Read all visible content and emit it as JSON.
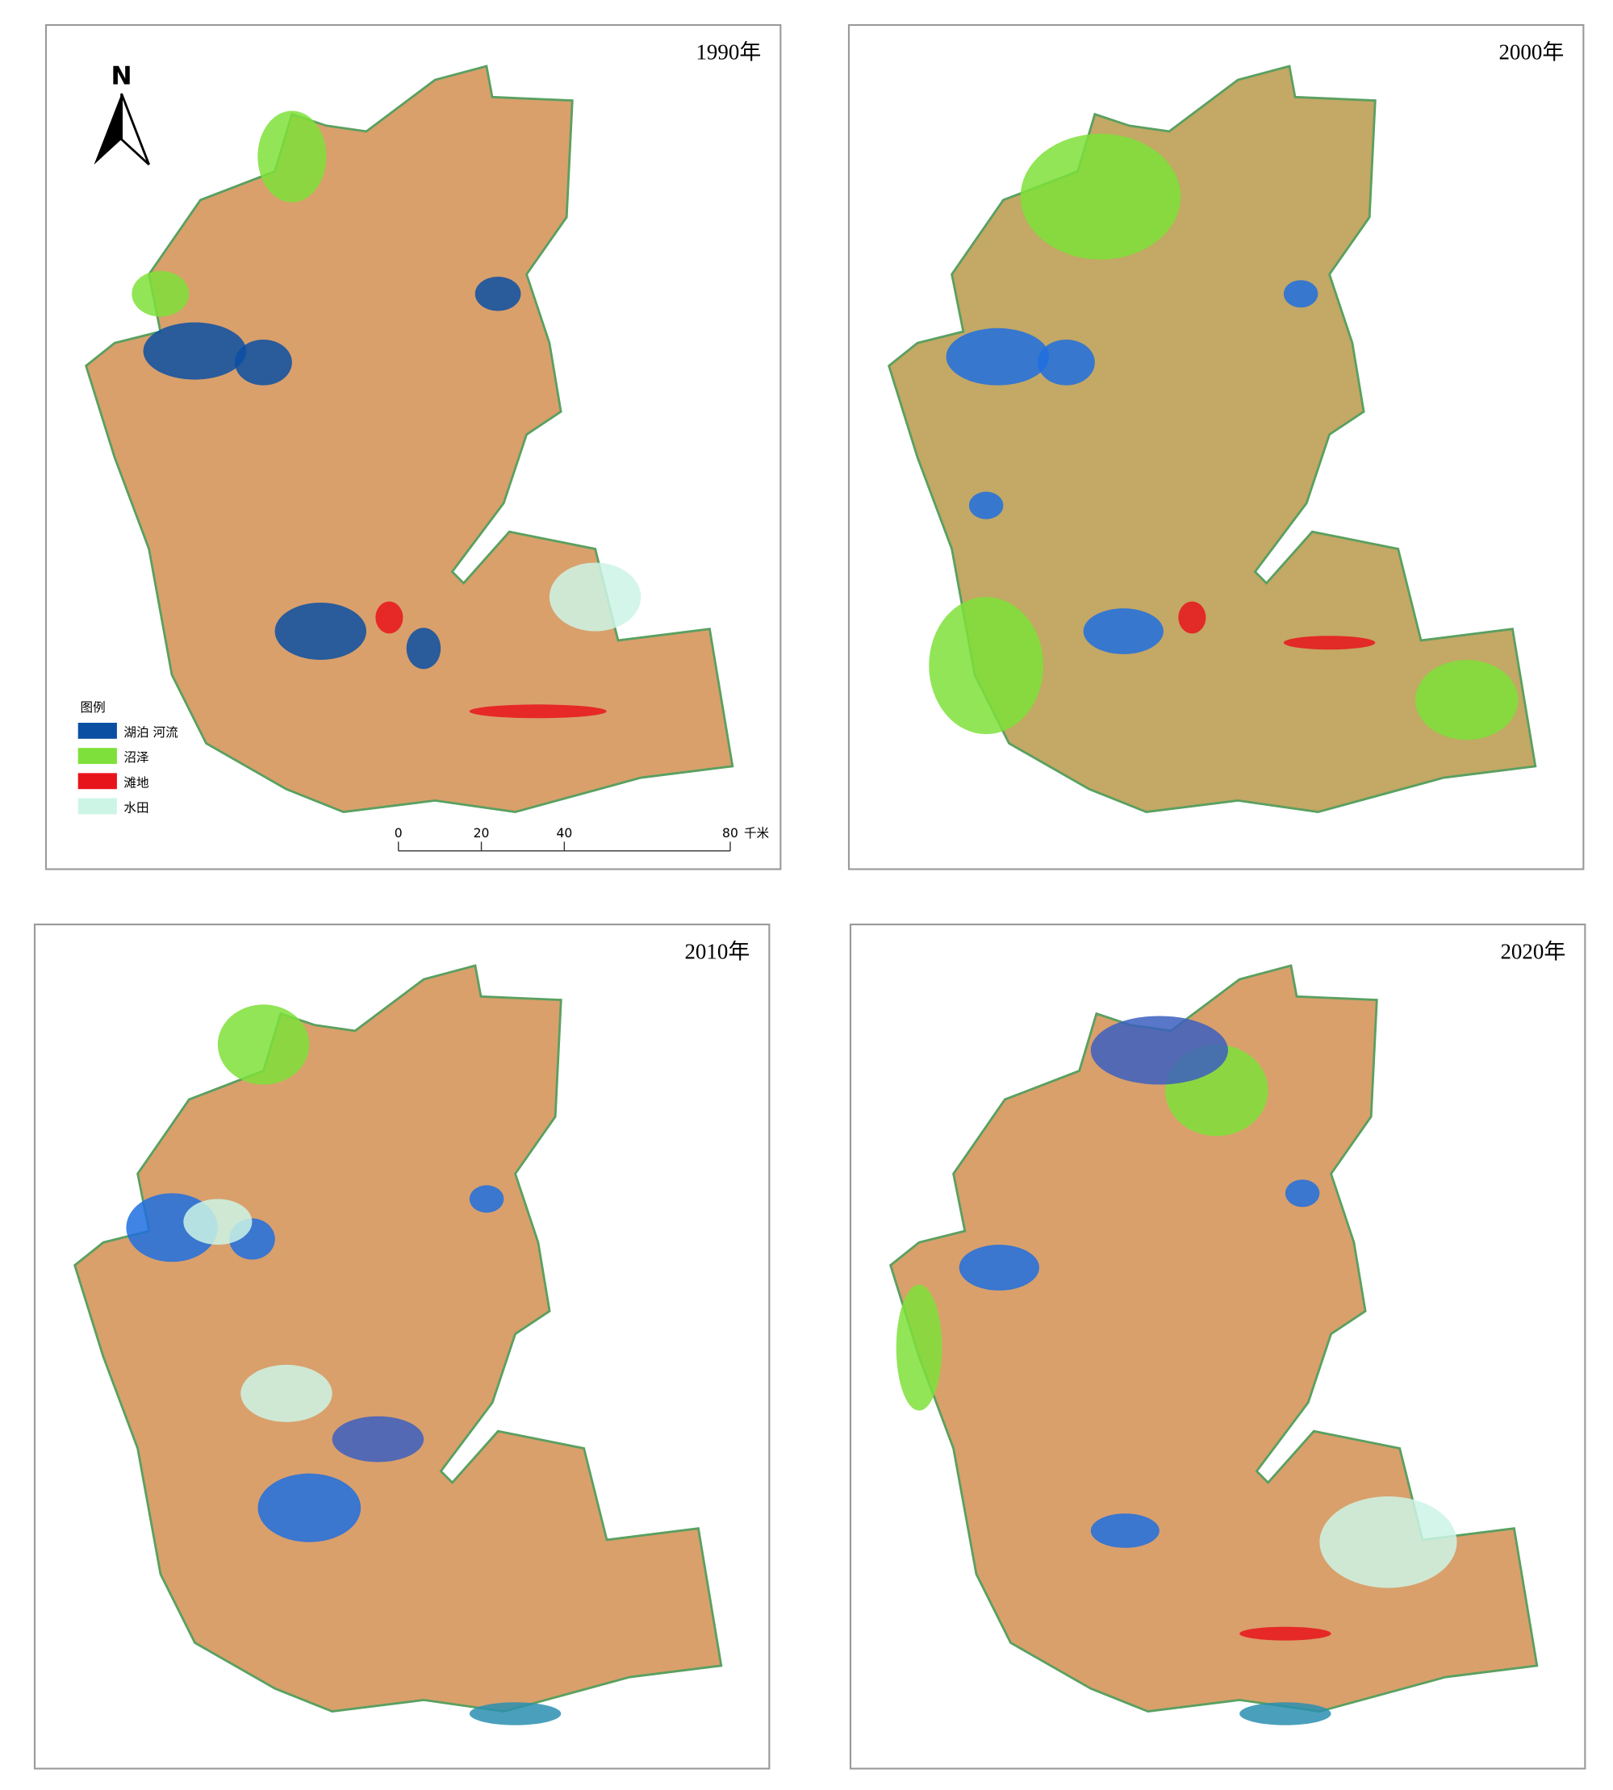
{
  "panels": [
    {
      "year": "1990年"
    },
    {
      "year": "2000年"
    },
    {
      "year": "2010年"
    },
    {
      "year": "2020年"
    }
  ],
  "north_arrow": "N",
  "legend": {
    "title": "图例",
    "items": [
      {
        "label": "湖泊 河流",
        "color": "#0b4fa3"
      },
      {
        "label": "沼泽",
        "color": "#7ee03a"
      },
      {
        "label": "滩地",
        "color": "#e8141b"
      },
      {
        "label": "水田",
        "color": "#cdf5e6"
      }
    ]
  },
  "scale_bar": {
    "ticks": [
      0,
      20,
      40,
      80
    ],
    "unit": "千米"
  }
}
